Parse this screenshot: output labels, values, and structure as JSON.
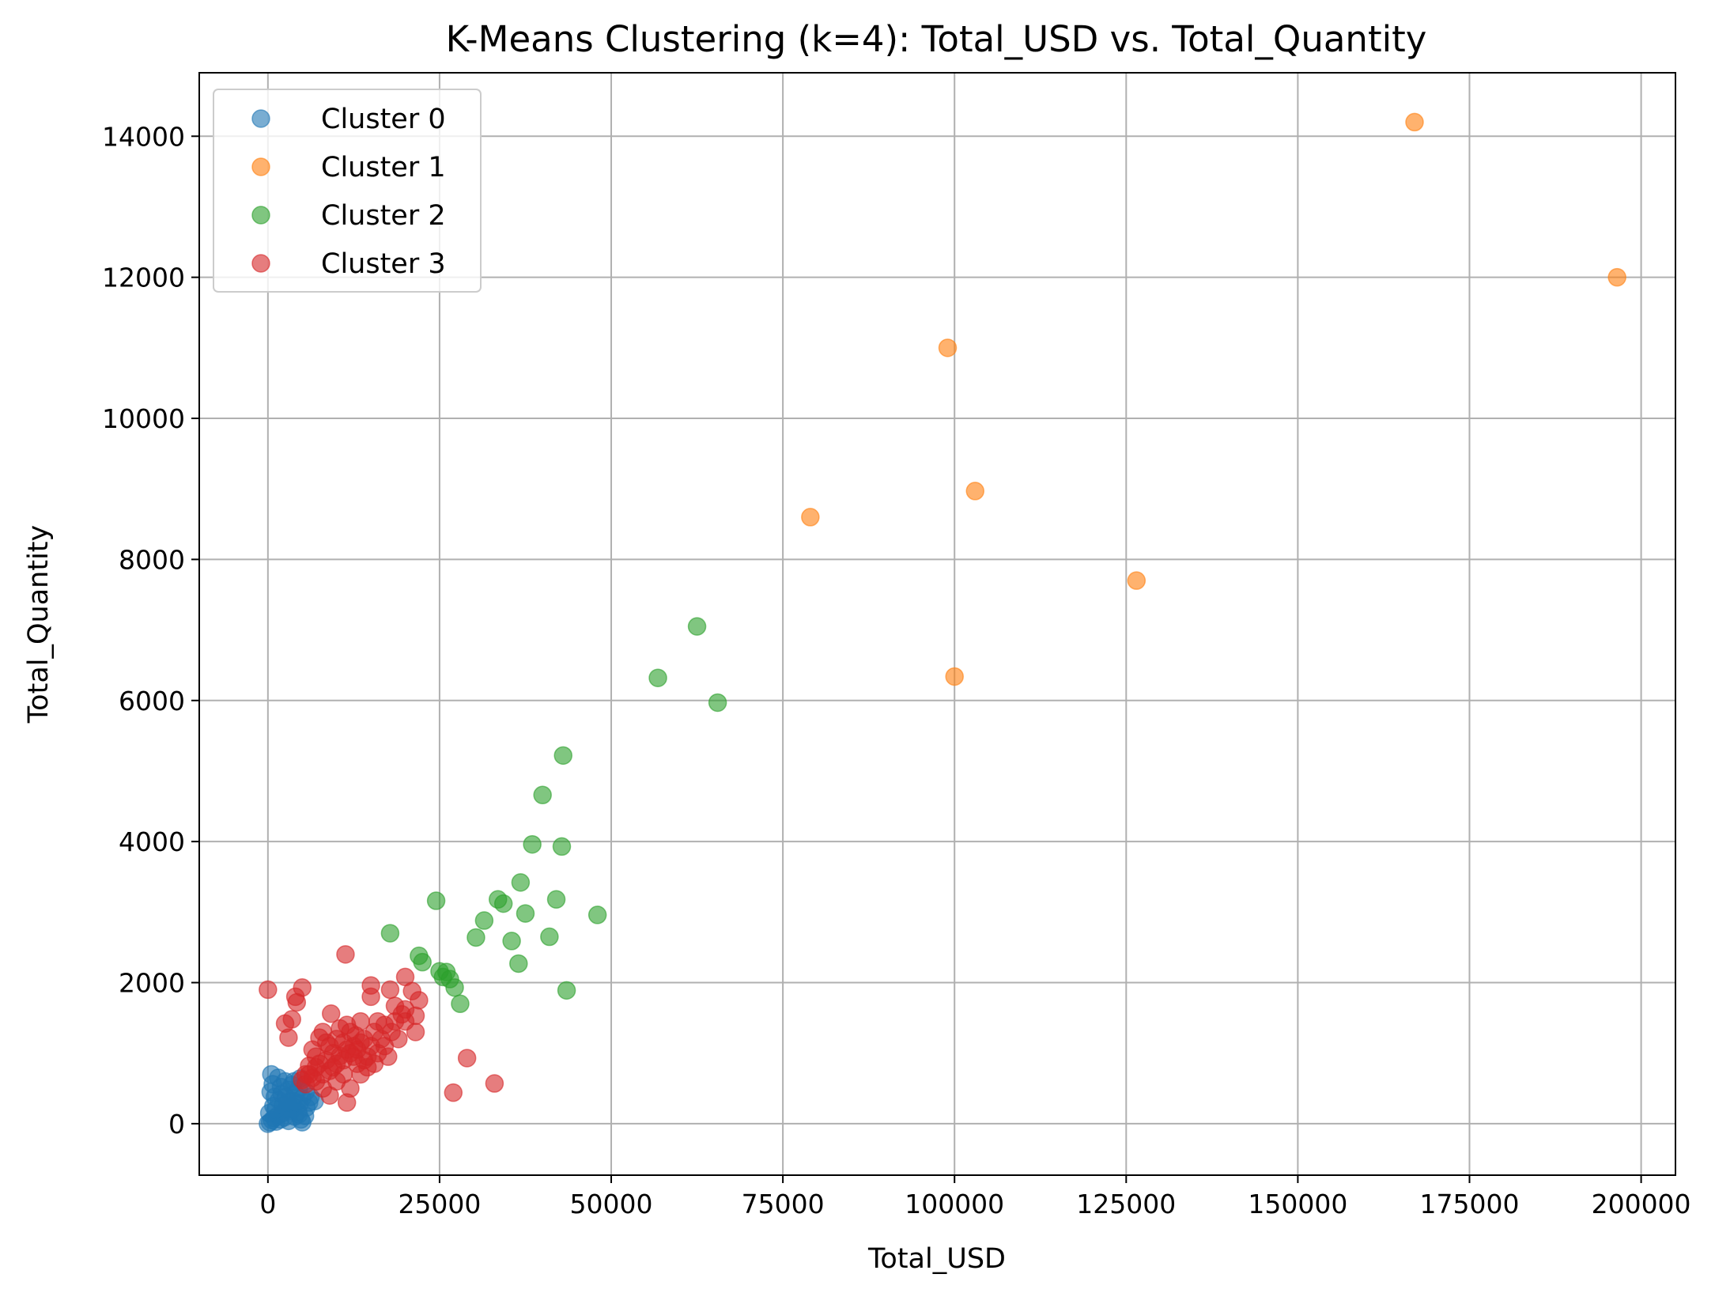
{
  "chart_data": {
    "type": "scatter",
    "title": "K-Means Clustering (k=4): Total_USD vs. Total_Quantity",
    "xlabel": "Total_USD",
    "ylabel": "Total_Quantity",
    "xlim": [
      -10000,
      205000
    ],
    "ylim": [
      -730,
      14900
    ],
    "x_ticks": [
      0,
      25000,
      50000,
      75000,
      100000,
      125000,
      150000,
      175000,
      200000
    ],
    "x_tick_labels": [
      "0",
      "25000",
      "50000",
      "75000",
      "100000",
      "125000",
      "150000",
      "175000",
      "200000"
    ],
    "y_ticks": [
      0,
      2000,
      4000,
      6000,
      8000,
      10000,
      12000,
      14000
    ],
    "y_tick_labels": [
      "0",
      "2000",
      "4000",
      "6000",
      "8000",
      "10000",
      "12000",
      "14000"
    ],
    "grid": true,
    "legend_position": "top-left",
    "series": [
      {
        "name": "Cluster 0",
        "color": "#1f77b4",
        "points": [
          [
            0,
            0
          ],
          [
            300,
            20
          ],
          [
            600,
            50
          ],
          [
            900,
            80
          ],
          [
            1200,
            30
          ],
          [
            1500,
            120
          ],
          [
            1800,
            60
          ],
          [
            2100,
            150
          ],
          [
            2400,
            90
          ],
          [
            2700,
            200
          ],
          [
            3000,
            40
          ],
          [
            3300,
            180
          ],
          [
            3600,
            250
          ],
          [
            3900,
            100
          ],
          [
            4200,
            300
          ],
          [
            4500,
            130
          ],
          [
            4800,
            60
          ],
          [
            5000,
            20
          ],
          [
            500,
            700
          ],
          [
            1500,
            650
          ],
          [
            2500,
            600
          ],
          [
            3500,
            550
          ],
          [
            4500,
            500
          ],
          [
            5500,
            450
          ],
          [
            6200,
            380
          ],
          [
            6800,
            320
          ],
          [
            400,
            450
          ],
          [
            1000,
            380
          ],
          [
            2000,
            420
          ],
          [
            3000,
            480
          ],
          [
            4000,
            420
          ],
          [
            5000,
            360
          ],
          [
            6000,
            300
          ],
          [
            800,
            250
          ],
          [
            1600,
            330
          ],
          [
            2600,
            380
          ],
          [
            3600,
            320
          ],
          [
            4600,
            280
          ],
          [
            5600,
            230
          ],
          [
            200,
            150
          ],
          [
            1100,
            200
          ],
          [
            2200,
            260
          ],
          [
            3200,
            220
          ],
          [
            4400,
            170
          ],
          [
            5400,
            110
          ],
          [
            700,
            560
          ],
          [
            1900,
            520
          ],
          [
            2900,
            300
          ],
          [
            3800,
            600
          ],
          [
            4700,
            640
          ]
        ]
      },
      {
        "name": "Cluster 1",
        "color": "#ff7f0e",
        "points": [
          [
            167000,
            14200
          ],
          [
            196500,
            12000
          ],
          [
            99000,
            11000
          ],
          [
            79000,
            8600
          ],
          [
            103000,
            8970
          ],
          [
            126500,
            7700
          ],
          [
            100000,
            6340
          ]
        ]
      },
      {
        "name": "Cluster 2",
        "color": "#2ca02c",
        "points": [
          [
            62500,
            7050
          ],
          [
            56800,
            6320
          ],
          [
            65500,
            5970
          ],
          [
            43000,
            5220
          ],
          [
            40000,
            4660
          ],
          [
            38500,
            3960
          ],
          [
            42800,
            3930
          ],
          [
            36800,
            3420
          ],
          [
            24500,
            3160
          ],
          [
            33500,
            3180
          ],
          [
            34300,
            3120
          ],
          [
            31500,
            2880
          ],
          [
            37500,
            2980
          ],
          [
            42000,
            3180
          ],
          [
            48000,
            2960
          ],
          [
            17800,
            2700
          ],
          [
            30300,
            2640
          ],
          [
            35500,
            2590
          ],
          [
            41000,
            2650
          ],
          [
            36500,
            2270
          ],
          [
            22000,
            2380
          ],
          [
            22500,
            2290
          ],
          [
            25000,
            2160
          ],
          [
            26000,
            2150
          ],
          [
            25500,
            2080
          ],
          [
            26500,
            2050
          ],
          [
            27200,
            1930
          ],
          [
            28000,
            1700
          ],
          [
            43500,
            1890
          ]
        ]
      },
      {
        "name": "Cluster 3",
        "color": "#d62728",
        "points": [
          [
            0,
            1900
          ],
          [
            5000,
            1930
          ],
          [
            4200,
            1720
          ],
          [
            4000,
            1800
          ],
          [
            3500,
            1480
          ],
          [
            3000,
            1220
          ],
          [
            2500,
            1420
          ],
          [
            11300,
            2400
          ],
          [
            15000,
            1960
          ],
          [
            15000,
            1800
          ],
          [
            17800,
            1900
          ],
          [
            20000,
            2080
          ],
          [
            21000,
            1880
          ],
          [
            22000,
            1750
          ],
          [
            21500,
            1530
          ],
          [
            21500,
            1300
          ],
          [
            20000,
            1620
          ],
          [
            18500,
            1670
          ],
          [
            13500,
            1450
          ],
          [
            9200,
            1560
          ],
          [
            8000,
            1300
          ],
          [
            7500,
            1220
          ],
          [
            6500,
            1050
          ],
          [
            7000,
            950
          ],
          [
            6000,
            820
          ],
          [
            5500,
            700
          ],
          [
            5000,
            620
          ],
          [
            8500,
            900
          ],
          [
            9000,
            1100
          ],
          [
            9500,
            800
          ],
          [
            10000,
            1200
          ],
          [
            10500,
            960
          ],
          [
            11000,
            700
          ],
          [
            11500,
            1050
          ],
          [
            12000,
            1300
          ],
          [
            12500,
            1100
          ],
          [
            13000,
            850
          ],
          [
            14000,
            1200
          ],
          [
            14500,
            950
          ],
          [
            15000,
            1100
          ],
          [
            15500,
            1300
          ],
          [
            16000,
            1000
          ],
          [
            16500,
            1200
          ],
          [
            17000,
            1100
          ],
          [
            17500,
            950
          ],
          [
            18000,
            1300
          ],
          [
            19000,
            1200
          ],
          [
            12000,
            500
          ],
          [
            11500,
            300
          ],
          [
            9000,
            400
          ],
          [
            8000,
            500
          ],
          [
            7000,
            600
          ],
          [
            6000,
            700
          ],
          [
            10000,
            600
          ],
          [
            13500,
            700
          ],
          [
            14500,
            800
          ],
          [
            29000,
            930
          ],
          [
            27000,
            440
          ],
          [
            33000,
            570
          ],
          [
            9500,
            1000
          ],
          [
            10500,
            1350
          ],
          [
            11500,
            1400
          ],
          [
            8500,
            1150
          ],
          [
            7500,
            850
          ],
          [
            12500,
            950
          ],
          [
            13500,
            1150
          ],
          [
            16000,
            1450
          ],
          [
            18500,
            1450
          ],
          [
            20000,
            1450
          ],
          [
            9000,
            750
          ],
          [
            10000,
            850
          ],
          [
            11000,
            900
          ],
          [
            12000,
            1000
          ],
          [
            13000,
            1050
          ],
          [
            8000,
            700
          ],
          [
            7000,
            800
          ],
          [
            6500,
            650
          ],
          [
            5500,
            560
          ],
          [
            14000,
            900
          ],
          [
            15500,
            850
          ],
          [
            17000,
            1400
          ],
          [
            19500,
            1550
          ],
          [
            11000,
            1150
          ],
          [
            12800,
            1250
          ]
        ]
      }
    ]
  }
}
